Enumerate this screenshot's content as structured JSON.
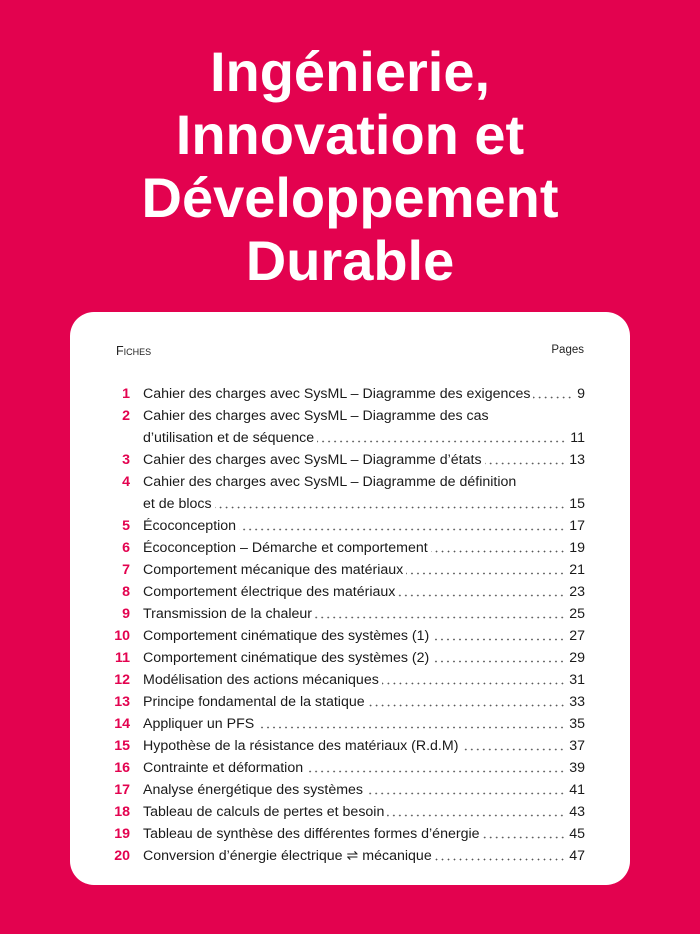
{
  "title": {
    "lines": [
      "Ingénierie,",
      "Innovation et",
      "Développement",
      "Durable"
    ]
  },
  "toc": {
    "header_left": "Fiches",
    "header_right": "Pages",
    "entries": [
      {
        "number": 1,
        "lines": [
          "Cahier des charges avec SysML – Diagramme des exigences"
        ],
        "page": 9
      },
      {
        "number": 2,
        "lines": [
          "Cahier des charges avec SysML – Diagramme des cas",
          "d’utilisation et de séquence"
        ],
        "page": 11
      },
      {
        "number": 3,
        "lines": [
          "Cahier des charges avec SysML – Diagramme d’états"
        ],
        "page": 13
      },
      {
        "number": 4,
        "lines": [
          "Cahier des charges avec SysML – Diagramme de définition",
          "et de blocs"
        ],
        "page": 15
      },
      {
        "number": 5,
        "lines": [
          "Écoconception"
        ],
        "page": 17
      },
      {
        "number": 6,
        "lines": [
          "Écoconception – Démarche et comportement"
        ],
        "page": 19
      },
      {
        "number": 7,
        "lines": [
          "Comportement mécanique des matériaux"
        ],
        "page": 21
      },
      {
        "number": 8,
        "lines": [
          "Comportement électrique des matériaux"
        ],
        "page": 23
      },
      {
        "number": 9,
        "lines": [
          "Transmission de la chaleur"
        ],
        "page": 25
      },
      {
        "number": 10,
        "lines": [
          "Comportement cinématique des systèmes (1)"
        ],
        "page": 27
      },
      {
        "number": 11,
        "lines": [
          "Comportement cinématique des systèmes (2)"
        ],
        "page": 29
      },
      {
        "number": 12,
        "lines": [
          "Modélisation des actions mécaniques"
        ],
        "page": 31
      },
      {
        "number": 13,
        "lines": [
          "Principe fondamental de la statique"
        ],
        "page": 33
      },
      {
        "number": 14,
        "lines": [
          "Appliquer un PFS"
        ],
        "page": 35
      },
      {
        "number": 15,
        "lines": [
          "Hypothèse de la résistance des matériaux (R.d.M)"
        ],
        "page": 37
      },
      {
        "number": 16,
        "lines": [
          "Contrainte et déformation"
        ],
        "page": 39
      },
      {
        "number": 17,
        "lines": [
          "Analyse énergétique des systèmes"
        ],
        "page": 41
      },
      {
        "number": 18,
        "lines": [
          "Tableau de calculs de pertes et besoin"
        ],
        "page": 43
      },
      {
        "number": 19,
        "lines": [
          "Tableau de synthèse des différentes formes d’énergie"
        ],
        "page": 45
      },
      {
        "number": 20,
        "lines": [
          "Conversion d’énergie électrique ⇌ mécanique"
        ],
        "page": 47
      }
    ]
  }
}
